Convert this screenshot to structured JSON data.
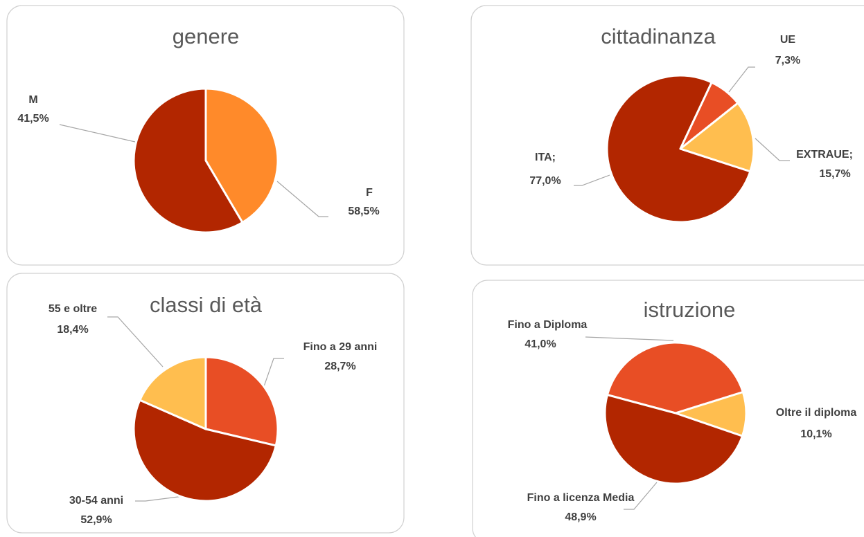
{
  "chart_data": [
    {
      "type": "pie",
      "title": "genere",
      "categories": [
        "M",
        "F"
      ],
      "values": [
        41.5,
        58.5
      ],
      "value_labels": [
        "41,5%",
        "58,5%"
      ],
      "colors": [
        "#FF8A2A",
        "#B22600"
      ]
    },
    {
      "type": "pie",
      "title": "cittadinanza",
      "categories": [
        "ITA;",
        "UE",
        "EXTRAUE;"
      ],
      "values": [
        77.0,
        7.3,
        15.7
      ],
      "value_labels": [
        "77,0%",
        "7,3%",
        "15,7%"
      ],
      "colors": [
        "#B22600",
        "#E84E25",
        "#FFBE4F"
      ]
    },
    {
      "type": "pie",
      "title": "classi di età",
      "categories": [
        "Fino a 29 anni",
        "30-54 anni",
        "55 e oltre"
      ],
      "values": [
        28.7,
        52.9,
        18.4
      ],
      "value_labels": [
        "28,7%",
        "52,9%",
        "18,4%"
      ],
      "colors": [
        "#E84E25",
        "#B22600",
        "#FFBE4F"
      ]
    },
    {
      "type": "pie",
      "title": "istruzione",
      "categories": [
        "Fino a Diploma",
        "Oltre il diploma",
        "Fino a licenza Media"
      ],
      "values": [
        41.0,
        10.1,
        48.9
      ],
      "value_labels": [
        "41,0%",
        "10,1%",
        "48,9%"
      ],
      "colors": [
        "#E84E25",
        "#FFBE4F",
        "#B22600"
      ]
    }
  ]
}
